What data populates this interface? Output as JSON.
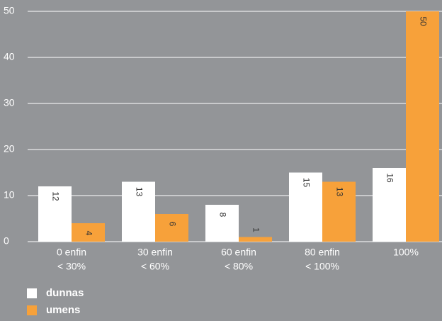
{
  "chart_data": {
    "type": "bar",
    "categories": [
      [
        "0 enfin",
        "< 30%"
      ],
      [
        "30 enfin",
        "< 60%"
      ],
      [
        "60 enfin",
        "< 80%"
      ],
      [
        "80 enfin",
        "< 100%"
      ],
      [
        "100%"
      ]
    ],
    "series": [
      {
        "name": "dunnas",
        "color": "#ffffff",
        "values": [
          12,
          13,
          8,
          15,
          16
        ]
      },
      {
        "name": "umens",
        "color": "#f7a13a",
        "values": [
          4,
          6,
          1,
          13,
          50
        ]
      }
    ],
    "ylim": [
      0,
      50
    ],
    "yticks": [
      0,
      10,
      20,
      30,
      40,
      50
    ],
    "grid": true
  }
}
